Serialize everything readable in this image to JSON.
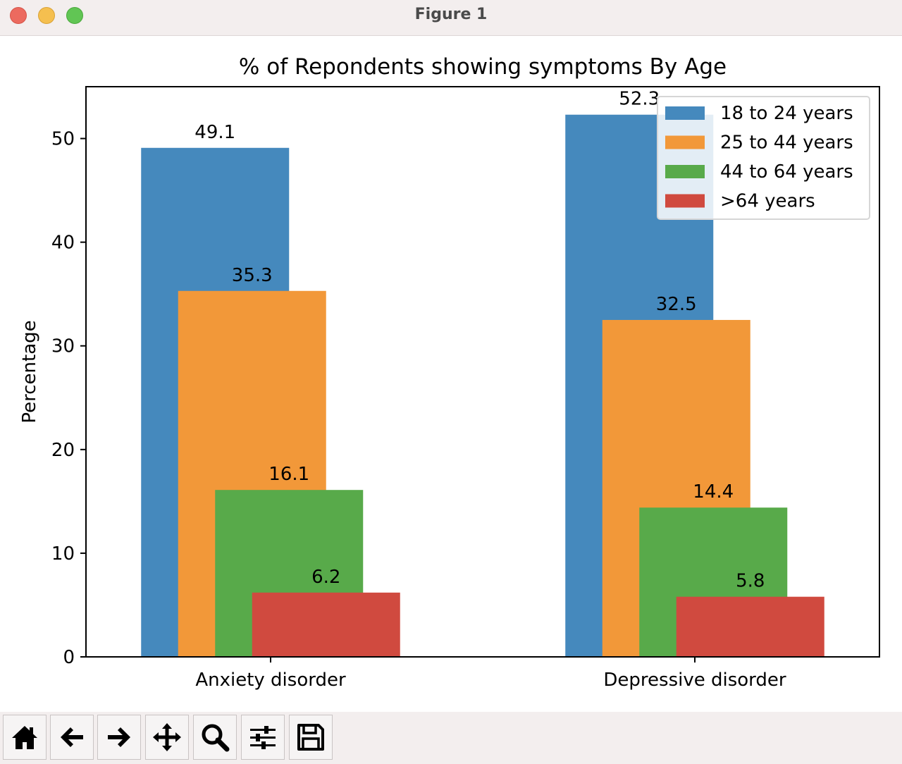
{
  "window": {
    "title": "Figure 1"
  },
  "toolbar": {
    "buttons": [
      {
        "icon": "home-icon"
      },
      {
        "icon": "back-arrow-icon"
      },
      {
        "icon": "forward-arrow-icon"
      },
      {
        "icon": "pan-move-icon"
      },
      {
        "icon": "zoom-magnifier-icon"
      },
      {
        "icon": "configure-subplots-icon"
      },
      {
        "icon": "save-floppy-icon"
      }
    ]
  },
  "chart_data": {
    "type": "bar",
    "title": "% of Repondents showing symptoms By Age",
    "xlabel": "",
    "ylabel": "Percentage",
    "categories": [
      "Anxiety disorder",
      "Depressive disorder"
    ],
    "ylim": [
      0,
      55
    ],
    "yticks": [
      0,
      10,
      20,
      30,
      40,
      50
    ],
    "series": [
      {
        "name": "18 to 24 years",
        "color": "#4589bd",
        "values": [
          49.1,
          52.3
        ],
        "labels": [
          "49.1",
          "52.3"
        ]
      },
      {
        "name": "25 to 44 years",
        "color": "#f29839",
        "values": [
          35.3,
          32.5
        ],
        "labels": [
          "35.3",
          "32.5"
        ]
      },
      {
        "name": "44 to 64 years",
        "color": "#58aa4a",
        "values": [
          16.1,
          14.4
        ],
        "labels": [
          "16.1",
          "14.4"
        ]
      },
      {
        "name": ">64 years",
        "color": "#d04a3f",
        "values": [
          6.2,
          5.8
        ],
        "labels": [
          "6.2",
          "5.8"
        ]
      }
    ],
    "legend_position": "top-right",
    "grid": false
  }
}
